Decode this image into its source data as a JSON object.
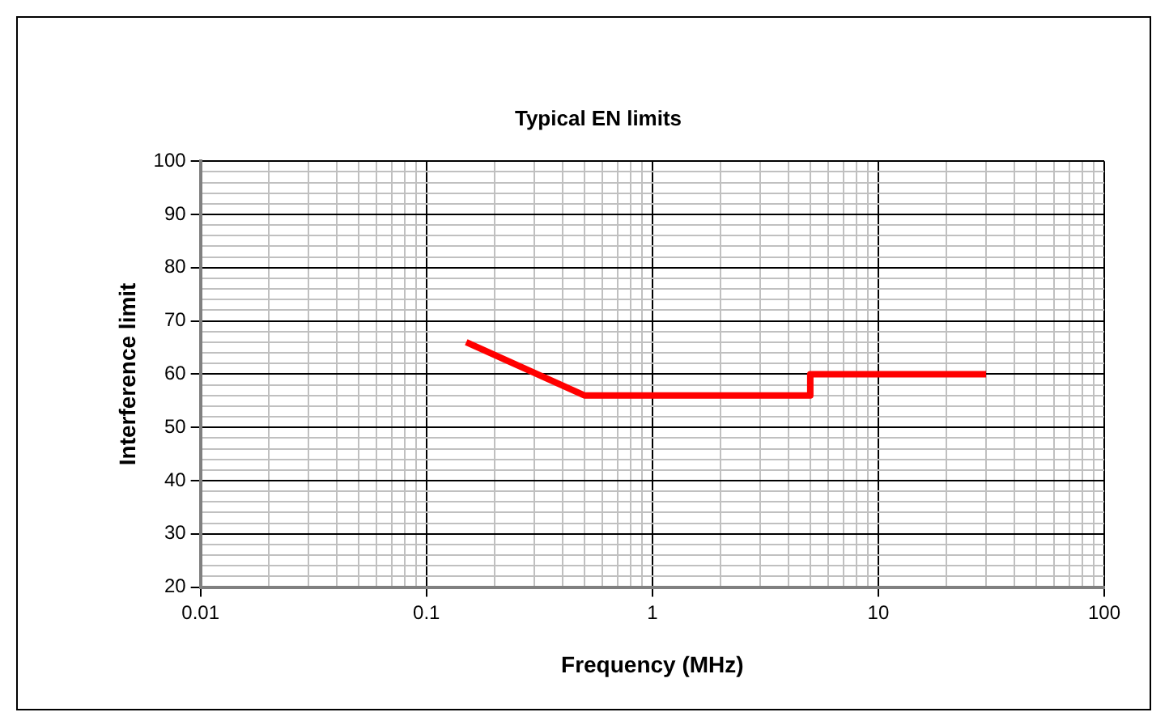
{
  "chart_data": {
    "type": "line",
    "title": "Typical EN limits",
    "xlabel": "Frequency (MHz)",
    "ylabel": "Interference limit",
    "log": "x",
    "grid": true,
    "legend": false,
    "marker": "none",
    "line_style": "solid",
    "series": [
      {
        "x": [
          0.15,
          0.5,
          5,
          5,
          30
        ],
        "values": [
          66,
          56,
          56,
          60,
          60
        ],
        "color": "#ff0000"
      }
    ],
    "xlim": [
      0.01,
      100
    ],
    "ylim": [
      20,
      100
    ],
    "xticks": [
      0.01,
      {
        "value": 0.02,
        "label": null
      },
      {
        "value": 0.03,
        "label": null
      },
      {
        "value": 0.04,
        "label": null
      },
      {
        "value": 0.05,
        "label": null
      },
      {
        "value": 0.06,
        "label": null
      },
      {
        "value": 0.07,
        "label": null
      },
      {
        "value": 0.08,
        "label": null
      },
      {
        "value": 0.09,
        "label": null
      },
      0.1,
      {
        "value": 0.2,
        "label": null
      },
      {
        "value": 0.3,
        "label": null
      },
      {
        "value": 0.4,
        "label": null
      },
      {
        "value": 0.5,
        "label": null
      },
      {
        "value": 0.6,
        "label": null
      },
      {
        "value": 0.7,
        "label": null
      },
      {
        "value": 0.8,
        "label": null
      },
      {
        "value": 0.9,
        "label": null
      },
      1,
      {
        "value": 2,
        "label": null
      },
      {
        "value": 3,
        "label": null
      },
      {
        "value": 4,
        "label": null
      },
      {
        "value": 5,
        "label": null
      },
      {
        "value": 6,
        "label": null
      },
      {
        "value": 7,
        "label": null
      },
      {
        "value": 8,
        "label": null
      },
      {
        "value": 9,
        "label": null
      },
      10,
      {
        "value": 20,
        "label": null
      },
      {
        "value": 30,
        "label": null
      },
      {
        "value": 40,
        "label": null
      },
      {
        "value": 50,
        "label": null
      },
      {
        "value": 60,
        "label": null
      },
      {
        "value": 70,
        "label": null
      },
      {
        "value": 80,
        "label": null
      },
      {
        "value": 90,
        "label": null
      },
      100
    ],
    "yticks": [
      20,
      {
        "value": 22,
        "label": null
      },
      {
        "value": 24,
        "label": null
      },
      {
        "value": 26,
        "label": null
      },
      {
        "value": 28,
        "label": null
      },
      30,
      {
        "value": 32,
        "label": null
      },
      {
        "value": 34,
        "label": null
      },
      {
        "value": 36,
        "label": null
      },
      {
        "value": 38,
        "label": null
      },
      40,
      {
        "value": 42,
        "label": null
      },
      {
        "value": 44,
        "label": null
      },
      {
        "value": 46,
        "label": null
      },
      {
        "value": 48,
        "label": null
      },
      50,
      {
        "value": 52,
        "label": null
      },
      {
        "value": 54,
        "label": null
      },
      {
        "value": 56,
        "label": null
      },
      {
        "value": 58,
        "label": null
      },
      60,
      {
        "value": 62,
        "label": null
      },
      {
        "value": 64,
        "label": null
      },
      {
        "value": 66,
        "label": null
      },
      {
        "value": 68,
        "label": null
      },
      70,
      {
        "value": 72,
        "label": null
      },
      {
        "value": 74,
        "label": null
      },
      {
        "value": 76,
        "label": null
      },
      {
        "value": 78,
        "label": null
      },
      80,
      {
        "value": 82,
        "label": null
      },
      {
        "value": 84,
        "label": null
      },
      {
        "value": 86,
        "label": null
      },
      {
        "value": 88,
        "label": null
      },
      90,
      {
        "value": 92,
        "label": null
      },
      {
        "value": 94,
        "label": null
      },
      {
        "value": 96,
        "label": null
      },
      {
        "value": 98,
        "label": null
      },
      100
    ]
  }
}
